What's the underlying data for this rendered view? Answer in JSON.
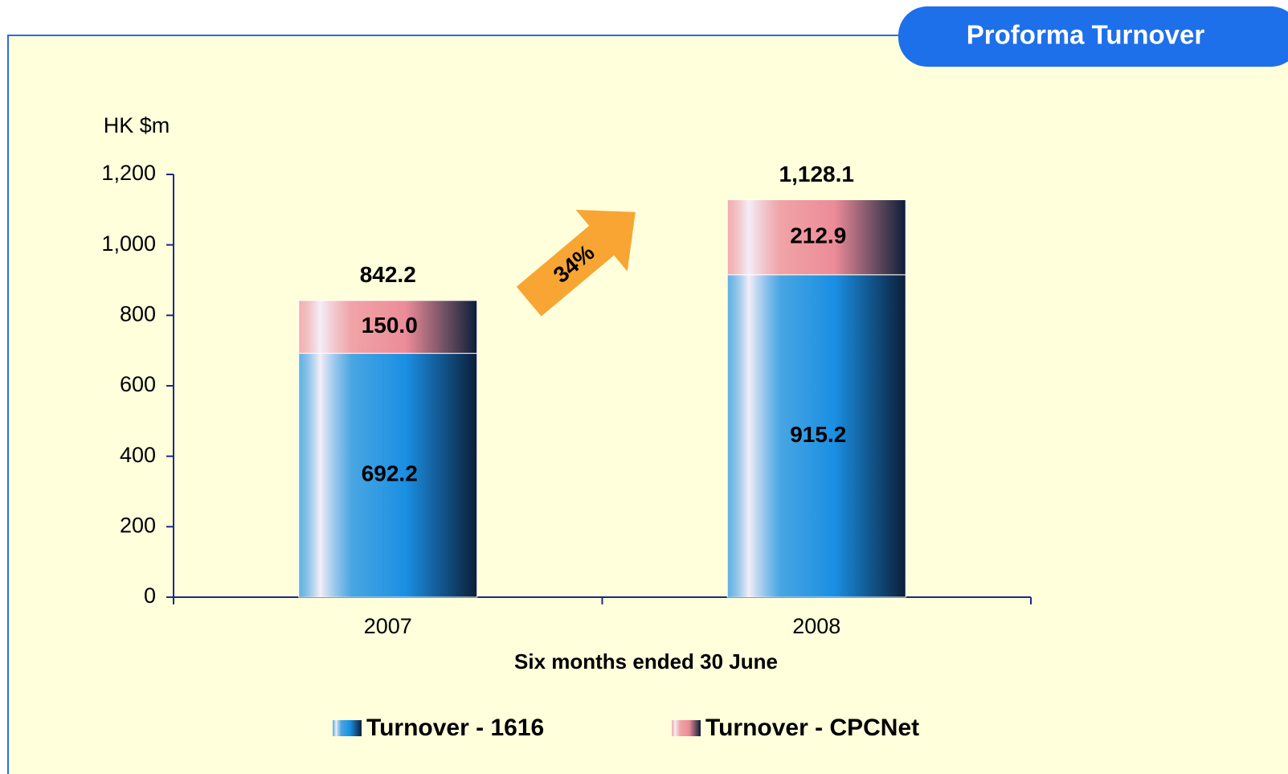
{
  "header": {
    "title": "Proforma Turnover"
  },
  "chart_data": {
    "type": "stacked_bar",
    "y_label": "HK $m",
    "x_label": "Six months ended 30 June",
    "annotation": "34%",
    "categories": [
      "2007",
      "2008"
    ],
    "series": [
      {
        "name": "Turnover - 1616",
        "color": "#1A8FE3",
        "values": [
          692.2,
          915.2
        ]
      },
      {
        "name": "Turnover - CPCNet",
        "color": "#EC8C98",
        "values": [
          150.0,
          212.9
        ],
        "value_labels": [
          "150.0",
          "212.9"
        ]
      }
    ],
    "totals": {
      "values": [
        842.2,
        1128.1
      ],
      "value_labels": [
        "842.2",
        "1,128.1"
      ]
    },
    "ylim": [
      0,
      1200
    ],
    "yticks": [
      0,
      200,
      400,
      600,
      800,
      {
        "value": 1000,
        "label": "1,000"
      },
      {
        "value": 1200,
        "label": "1,200"
      }
    ]
  }
}
